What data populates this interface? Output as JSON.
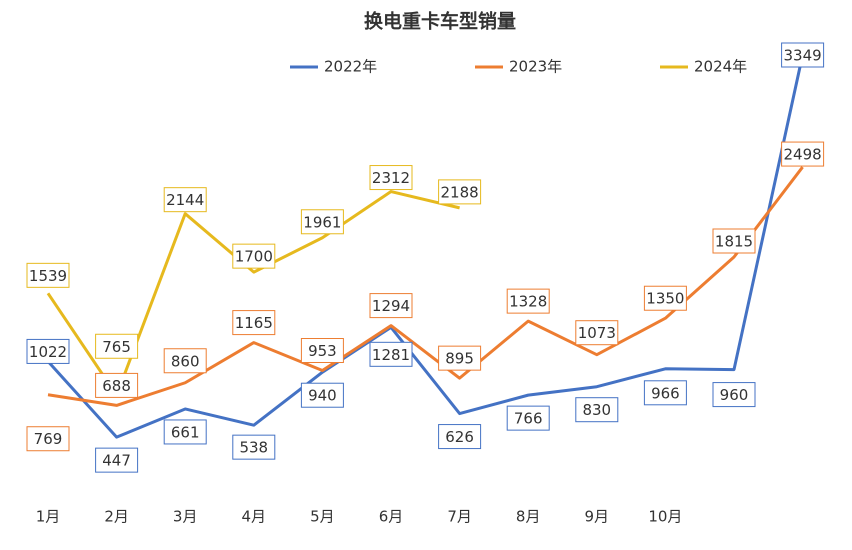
{
  "chart_data": {
    "type": "line",
    "title": "换电重卡车型销量",
    "categories": [
      "1月",
      "2月",
      "3月",
      "4月",
      "5月",
      "6月",
      "7月",
      "8月",
      "9月",
      "10月",
      null,
      null
    ],
    "series": [
      {
        "name": "2022年",
        "color": "#4472c4",
        "values": [
          1022,
          447,
          661,
          538,
          940,
          1281,
          626,
          766,
          830,
          966,
          960,
          3349
        ]
      },
      {
        "name": "2023年",
        "color": "#ed7d31",
        "values": [
          769,
          688,
          860,
          1165,
          953,
          1294,
          895,
          1328,
          1073,
          1350,
          1815,
          2498
        ]
      },
      {
        "name": "2024年",
        "color": "#e6b91e",
        "values": [
          1539,
          765,
          2144,
          1700,
          1961,
          2312,
          2188,
          null,
          null,
          null,
          null,
          null
        ]
      }
    ],
    "legend": "top",
    "data_labels": true
  }
}
